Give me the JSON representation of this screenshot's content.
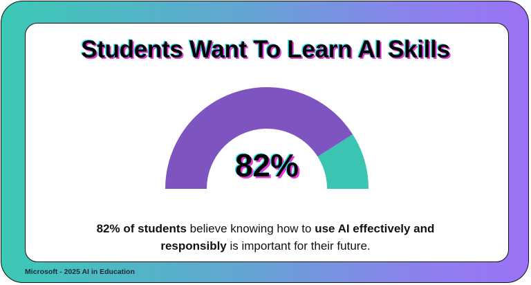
{
  "title": "Students Want To Learn AI Skills",
  "chart_data": {
    "type": "gauge",
    "value": 82,
    "max": 100,
    "label": "82%",
    "colors": {
      "filled": "#7e55c0",
      "remaining": "#3cc4b3"
    }
  },
  "description": {
    "part1_bold": "82% of students",
    "part2": " believe knowing how to ",
    "part3_bold": "use AI effectively and",
    "part4_bold": "responsibly",
    "part5": " is important for their future."
  },
  "footer": "Microsoft - 2025 AI in Education"
}
